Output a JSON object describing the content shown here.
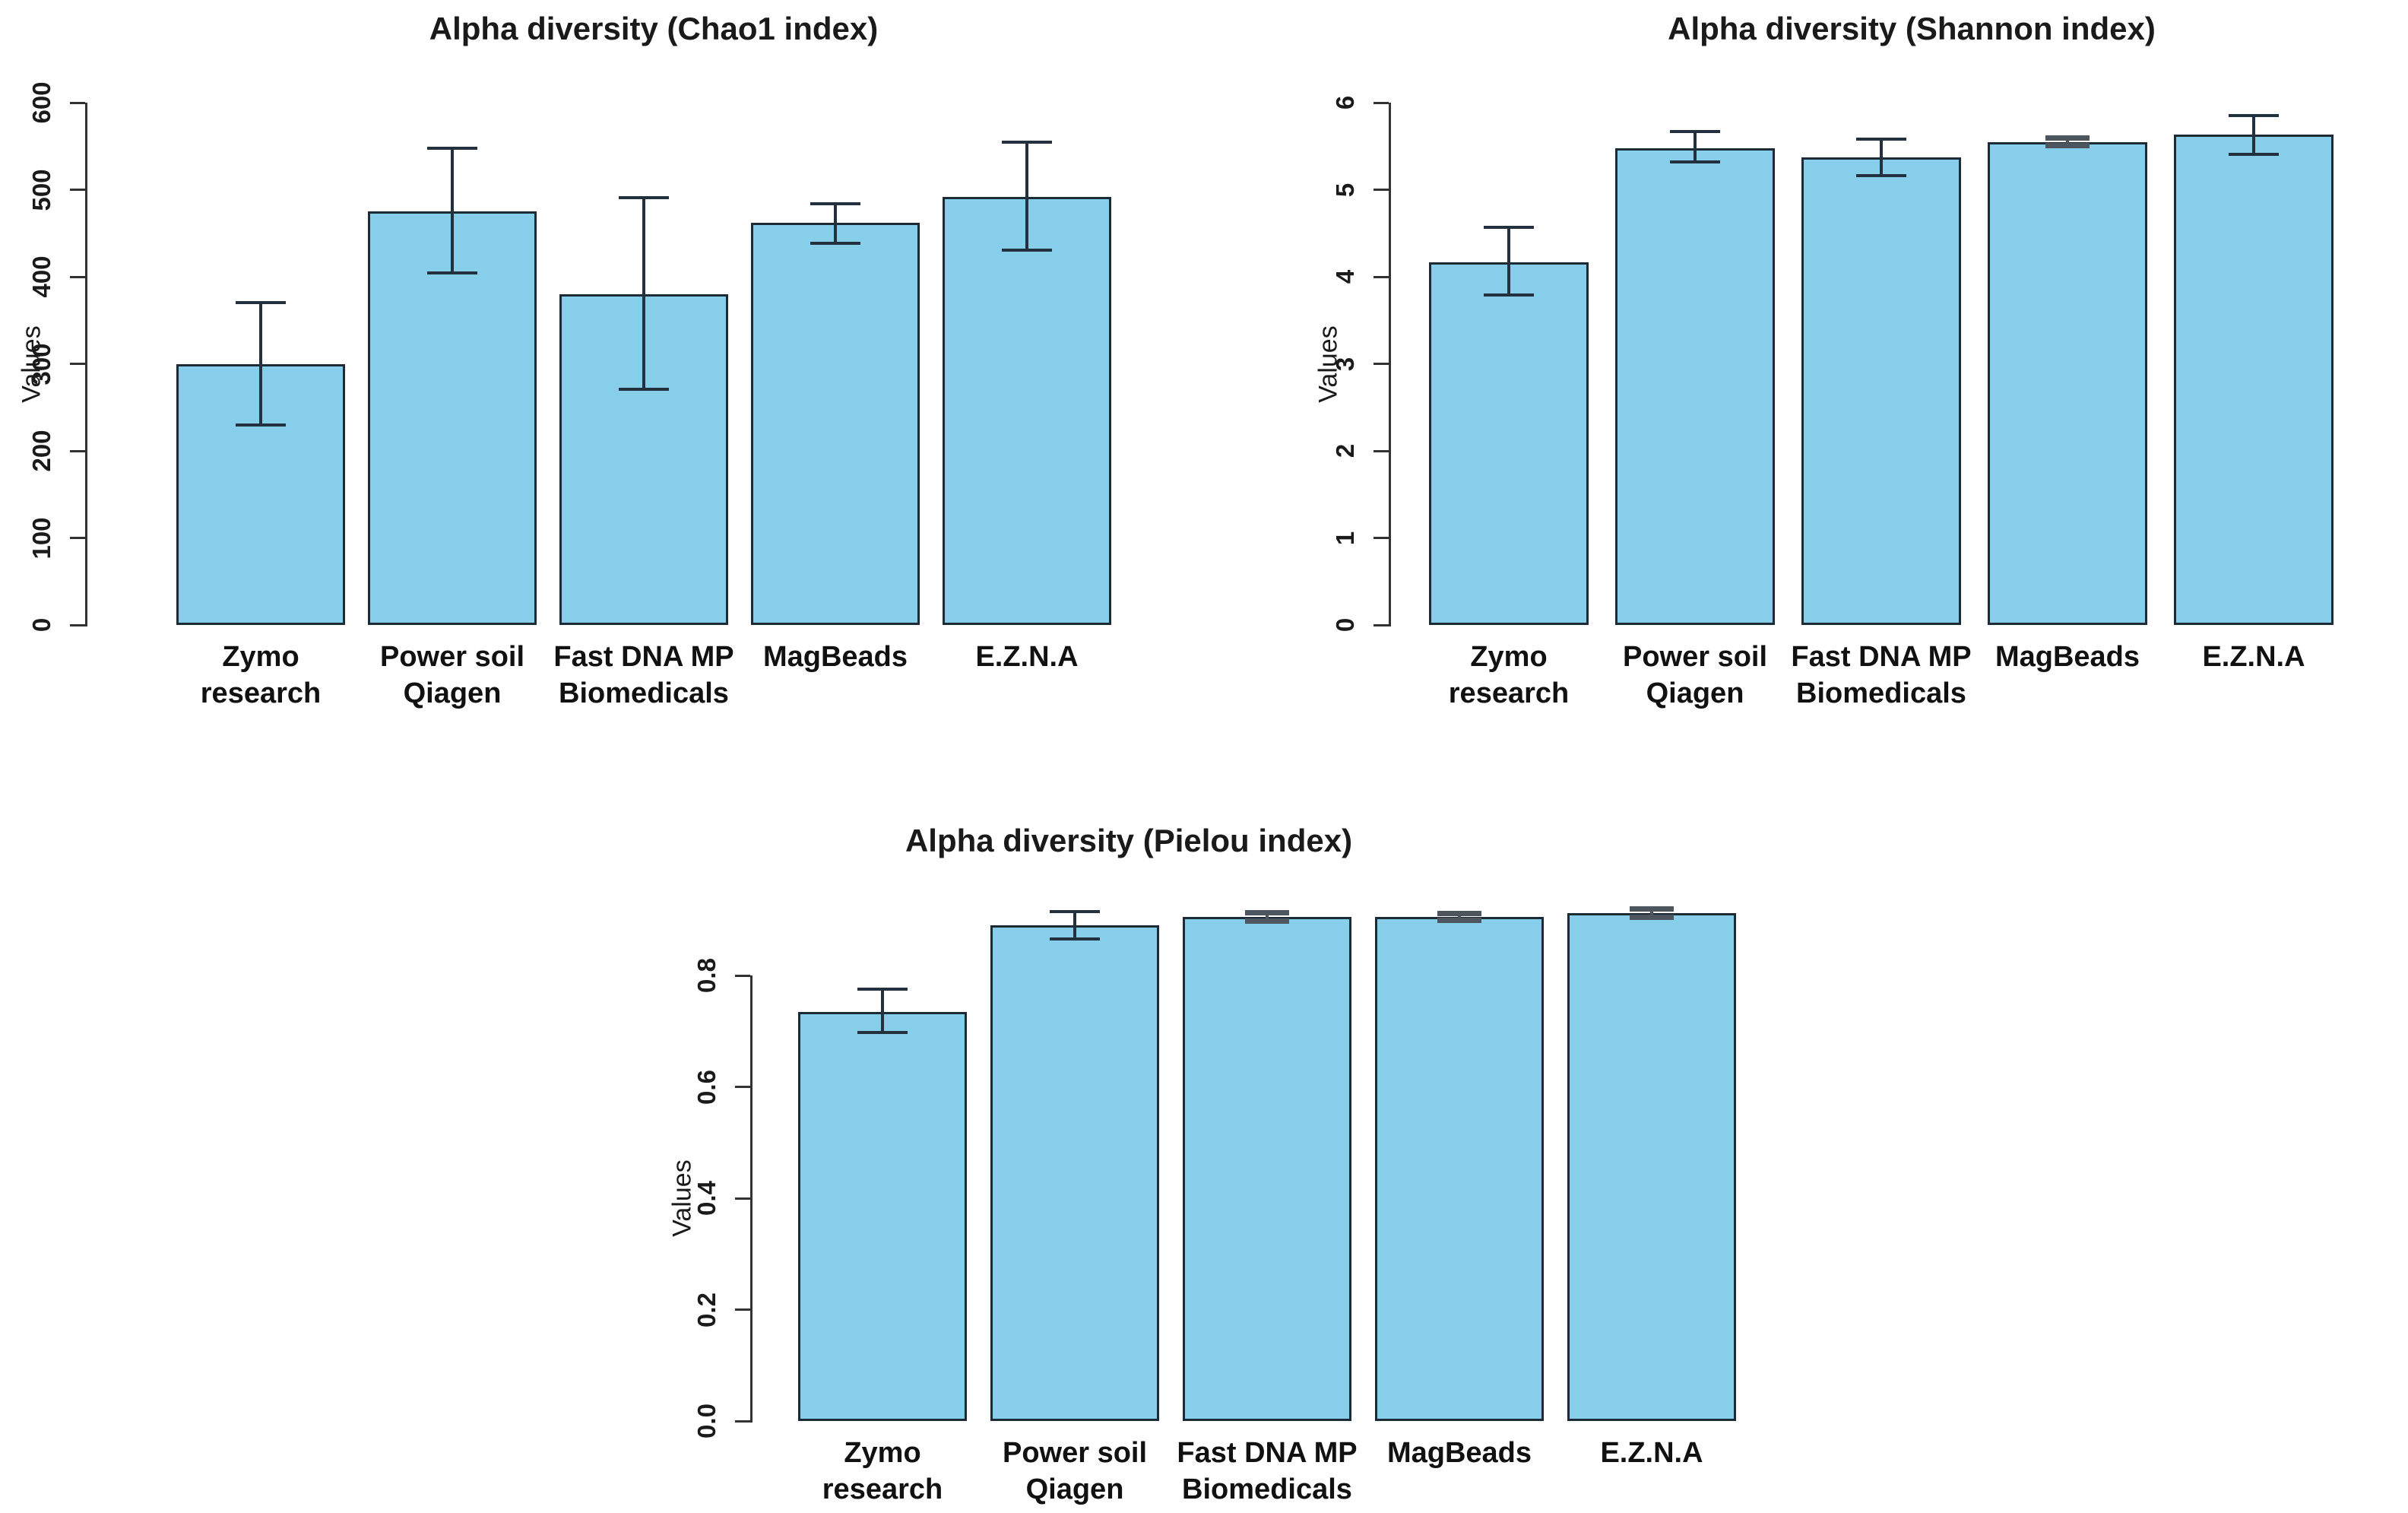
{
  "figure": {
    "background": "#ffffff",
    "description_titles": [
      "Alpha diversity (Chao1 index)",
      "Alpha diversity (Shannon index)",
      "Alpha diversity (Pielou index)"
    ]
  },
  "colors": {
    "bar_fill": "#87CEEB",
    "bar_border": "#1c2b36",
    "error": "#22313d",
    "error_tiny": "#4d565e",
    "axis": "#333333",
    "text": "#1a1a1a"
  },
  "chart_data": [
    {
      "type": "bar",
      "title": "Alpha diversity (Chao1 index)",
      "xlabel": "",
      "ylabel": "Values",
      "ylim": [
        0,
        600
      ],
      "grid": false,
      "legend": "none",
      "yticks": [
        "0",
        "100",
        "200",
        "300",
        "400",
        "500",
        "600"
      ],
      "bars": [
        {
          "label": "Zymo\nresearch",
          "value": 300,
          "err_low": 230,
          "err_high": 370,
          "err_style": "normal"
        },
        {
          "label": "Power soil\nQiagen",
          "value": 475,
          "err_low": 404,
          "err_high": 548,
          "err_style": "normal"
        },
        {
          "label": "Fast DNA MP\nBiomedicals",
          "value": 380,
          "err_low": 271,
          "err_high": 491,
          "err_style": "normal"
        },
        {
          "label": "MagBeads",
          "value": 462,
          "err_low": 438,
          "err_high": 484,
          "err_style": "normal"
        },
        {
          "label": "E.Z.N.A",
          "value": 492,
          "err_low": 431,
          "err_high": 555,
          "err_style": "normal"
        }
      ]
    },
    {
      "type": "bar",
      "title": "Alpha diversity (Shannon index)",
      "xlabel": "",
      "ylabel": "Values",
      "ylim": [
        0,
        6
      ],
      "grid": false,
      "legend": "none",
      "yticks": [
        "0",
        "1",
        "2",
        "3",
        "4",
        "5",
        "6"
      ],
      "bars": [
        {
          "label": "Zymo\nresearch",
          "value": 4.17,
          "err_low": 3.79,
          "err_high": 4.57,
          "err_style": "normal"
        },
        {
          "label": "Power soil\nQiagen",
          "value": 5.48,
          "err_low": 5.32,
          "err_high": 5.67,
          "err_style": "normal"
        },
        {
          "label": "Fast DNA MP\nBiomedicals",
          "value": 5.37,
          "err_low": 5.16,
          "err_high": 5.58,
          "err_style": "normal"
        },
        {
          "label": "MagBeads",
          "value": 5.55,
          "err_low": 5.51,
          "err_high": 5.59,
          "err_style": "tiny"
        },
        {
          "label": "E.Z.N.A",
          "value": 5.63,
          "err_low": 5.41,
          "err_high": 5.85,
          "err_style": "normal"
        }
      ]
    },
    {
      "type": "bar",
      "title": "Alpha diversity (Pielou index)",
      "xlabel": "",
      "ylabel": "Values",
      "ylim": [
        0,
        0.8
      ],
      "grid": false,
      "legend": "none",
      "yticks": [
        "0.0",
        "0.2",
        "0.4",
        "0.6",
        "0.8"
      ],
      "bars": [
        {
          "label": "Zymo\nresearch",
          "value": 0.735,
          "err_low": 0.697,
          "err_high": 0.775,
          "err_style": "normal"
        },
        {
          "label": "Power soil\nQiagen",
          "value": 0.89,
          "err_low": 0.866,
          "err_high": 0.915,
          "err_style": "normal"
        },
        {
          "label": "Fast DNA MP\nBiomedicals",
          "value": 0.905,
          "err_low": 0.898,
          "err_high": 0.913,
          "err_style": "tiny"
        },
        {
          "label": "MagBeads",
          "value": 0.905,
          "err_low": 0.899,
          "err_high": 0.911,
          "err_style": "tiny"
        },
        {
          "label": "E.Z.N.A",
          "value": 0.912,
          "err_low": 0.905,
          "err_high": 0.919,
          "err_style": "tiny"
        }
      ]
    }
  ]
}
